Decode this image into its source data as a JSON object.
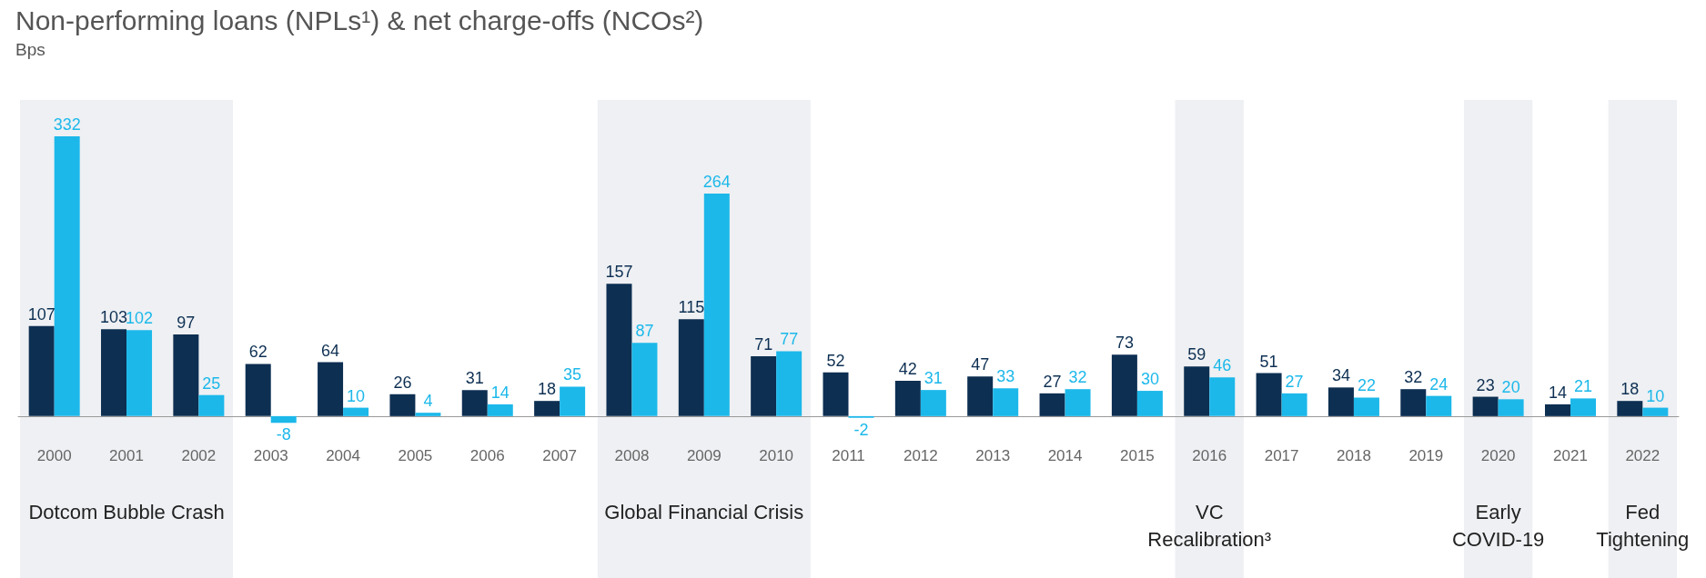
{
  "chart_data": {
    "type": "bar",
    "title": "Non-performing loans (NPLs¹) & net charge-offs (NCOs²)",
    "subtitle": "Bps",
    "categories": [
      "2000",
      "2001",
      "2002",
      "2003",
      "2004",
      "2005",
      "2006",
      "2007",
      "2008",
      "2009",
      "2010",
      "2011",
      "2012",
      "2013",
      "2014",
      "2015",
      "2016",
      "2017",
      "2018",
      "2019",
      "2020",
      "2021",
      "2022"
    ],
    "series": [
      {
        "color": "#0d2f52",
        "values": [
          107,
          103,
          97,
          62,
          64,
          26,
          31,
          18,
          157,
          115,
          71,
          52,
          42,
          47,
          27,
          73,
          59,
          51,
          34,
          32,
          23,
          14,
          18
        ]
      },
      {
        "color": "#1cb8ea",
        "values": [
          332,
          102,
          25,
          -8,
          10,
          4,
          14,
          35,
          87,
          264,
          77,
          -2,
          31,
          33,
          32,
          30,
          46,
          27,
          22,
          24,
          20,
          21,
          10
        ]
      }
    ],
    "bands": [
      {
        "axis": "x",
        "from": "2000",
        "to": "2002",
        "label": "Dotcom Bubble Crash",
        "color": "#eef0f3"
      },
      {
        "axis": "x",
        "from": "2008",
        "to": "2010",
        "label": "Global Financial Crisis",
        "color": "#eef0f3"
      },
      {
        "axis": "x",
        "from": "2016",
        "to": "2016",
        "label": "VC Recalibration³",
        "color": "#eef0f3"
      },
      {
        "axis": "x",
        "from": "2020",
        "to": "2020",
        "label": "Early COVID-19",
        "color": "#eef0f3"
      },
      {
        "axis": "x",
        "from": "2022",
        "to": "2022",
        "label": "Fed Tightening",
        "color": "#eef0f3"
      }
    ],
    "data_labels": true
  }
}
